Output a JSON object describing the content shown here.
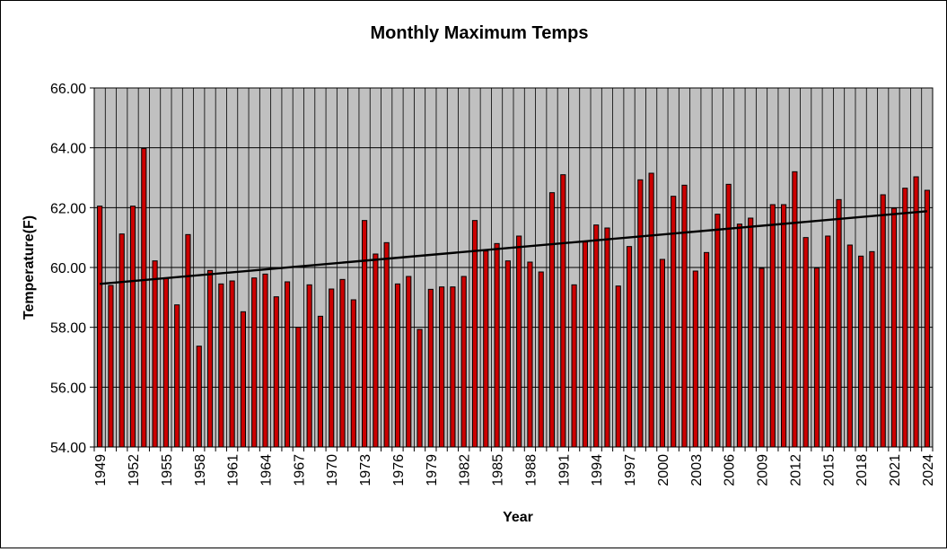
{
  "chart_data": {
    "type": "bar",
    "title": "Monthly Maximum Temps",
    "xlabel": "Year",
    "ylabel": "Temperature(F)",
    "ylim": [
      54,
      66
    ],
    "yticks": [
      "54.00",
      "56.00",
      "58.00",
      "60.00",
      "62.00",
      "64.00",
      "66.00"
    ],
    "xticks": [
      "1949",
      "1952",
      "1955",
      "1958",
      "1961",
      "1964",
      "1967",
      "1970",
      "1973",
      "1976",
      "1979",
      "1982",
      "1985",
      "1988",
      "1991",
      "1994",
      "1997",
      "2000",
      "2003",
      "2006",
      "2009",
      "2012",
      "2015",
      "2018",
      "2021",
      "2024"
    ],
    "grid": true,
    "bar_color": "#cc0000",
    "plot_background": "#c0c0c0",
    "trendline": {
      "type": "linear",
      "start": [
        1949,
        59.45
      ],
      "end": [
        2024,
        61.88
      ]
    },
    "x": [
      1949,
      1950,
      1951,
      1952,
      1953,
      1954,
      1955,
      1956,
      1957,
      1958,
      1959,
      1960,
      1961,
      1962,
      1963,
      1964,
      1965,
      1966,
      1967,
      1968,
      1969,
      1970,
      1971,
      1972,
      1973,
      1974,
      1975,
      1976,
      1977,
      1978,
      1979,
      1980,
      1981,
      1982,
      1983,
      1984,
      1985,
      1986,
      1987,
      1988,
      1989,
      1990,
      1991,
      1992,
      1993,
      1994,
      1995,
      1996,
      1997,
      1998,
      1999,
      2000,
      2001,
      2002,
      2003,
      2004,
      2005,
      2006,
      2007,
      2008,
      2009,
      2010,
      2011,
      2012,
      2013,
      2014,
      2015,
      2016,
      2017,
      2018,
      2019,
      2020,
      2021,
      2022,
      2023,
      2024
    ],
    "values": [
      62.05,
      59.4,
      61.12,
      62.05,
      63.98,
      60.22,
      59.65,
      58.75,
      61.1,
      57.37,
      59.9,
      59.45,
      59.55,
      58.52,
      59.65,
      59.78,
      59.02,
      59.52,
      58.0,
      59.42,
      58.37,
      59.28,
      59.6,
      58.92,
      61.57,
      60.45,
      60.83,
      59.45,
      59.7,
      57.93,
      59.27,
      59.35,
      59.35,
      59.7,
      61.57,
      60.55,
      60.8,
      60.22,
      61.05,
      60.18,
      59.85,
      62.5,
      63.1,
      59.42,
      60.85,
      61.42,
      61.32,
      59.38,
      60.7,
      62.93,
      63.15,
      60.27,
      62.38,
      62.75,
      59.88,
      60.5,
      61.78,
      62.78,
      61.45,
      61.65,
      59.97,
      62.1,
      62.1,
      63.2,
      61.0,
      59.98,
      61.05,
      62.27,
      60.75,
      60.38,
      60.53,
      62.43,
      61.98,
      62.65,
      63.03,
      62.58
    ]
  }
}
